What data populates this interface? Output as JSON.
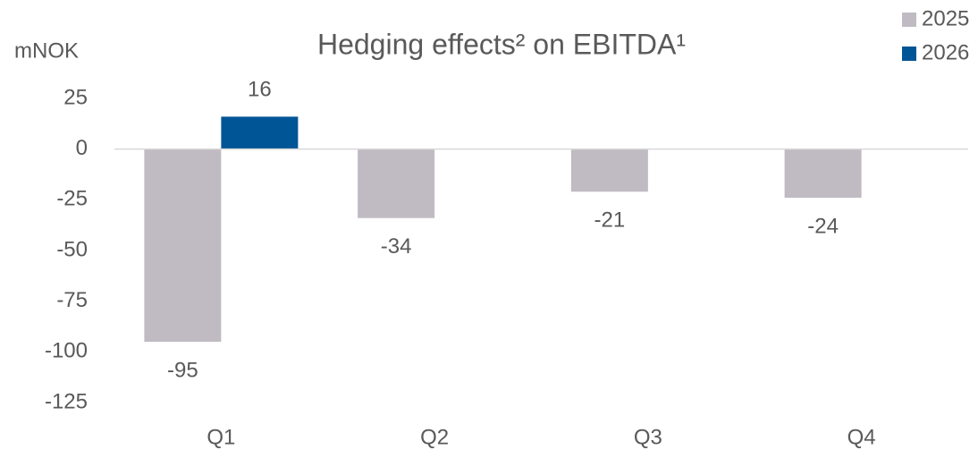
{
  "chart_data": {
    "type": "bar",
    "title": "Hedging effects² on EBITDA¹",
    "y_label": "mNOK",
    "categories": [
      "Q1",
      "Q2",
      "Q3",
      "Q4"
    ],
    "series": [
      {
        "name": "2025",
        "color": "#c0bbc2",
        "values": [
          -95,
          -34,
          -21,
          -24
        ]
      },
      {
        "name": "2026",
        "color": "#005596",
        "values": [
          16,
          null,
          null,
          null
        ]
      }
    ],
    "ylim": [
      -125,
      25
    ],
    "yticks": [
      25,
      0,
      -25,
      -50,
      -75,
      -100,
      -125
    ],
    "grid": false,
    "legend": "top-right"
  }
}
